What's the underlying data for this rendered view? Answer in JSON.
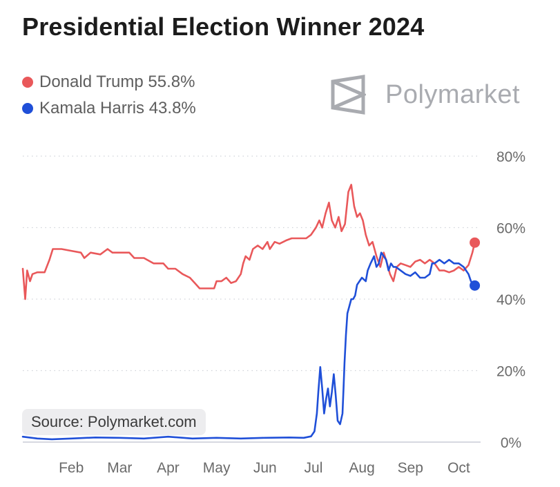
{
  "title": "Presidential Election Winner 2024",
  "legend": [
    {
      "label": "Donald Trump 55.8%",
      "color": "#e9585a"
    },
    {
      "label": "Kamala Harris 43.8%",
      "color": "#1f4fd8"
    }
  ],
  "brand": {
    "name": "Polymarket",
    "icon": "polymarket-logo-icon"
  },
  "source": "Source: Polymarket.com",
  "chart_data": {
    "type": "line",
    "xlabel": "",
    "ylabel": "",
    "xlim": [
      0,
      9.45
    ],
    "ylim": [
      0,
      80
    ],
    "x_ticks": [
      {
        "label": "Feb",
        "value": 1
      },
      {
        "label": "Mar",
        "value": 2
      },
      {
        "label": "Apr",
        "value": 3
      },
      {
        "label": "May",
        "value": 4
      },
      {
        "label": "Jun",
        "value": 5
      },
      {
        "label": "Jul",
        "value": 6
      },
      {
        "label": "Aug",
        "value": 7
      },
      {
        "label": "Sep",
        "value": 8
      },
      {
        "label": "Oct",
        "value": 9
      }
    ],
    "y_ticks": [
      {
        "label": "0%",
        "value": 0
      },
      {
        "label": "20%",
        "value": 20
      },
      {
        "label": "40%",
        "value": 40
      },
      {
        "label": "60%",
        "value": 60
      },
      {
        "label": "80%",
        "value": 80
      }
    ],
    "grid": "horizontal-dotted",
    "series": [
      {
        "name": "Donald Trump",
        "color": "#e9585a",
        "end_marker": true,
        "points": [
          [
            0.0,
            48.5
          ],
          [
            0.05,
            40
          ],
          [
            0.09,
            48
          ],
          [
            0.15,
            45
          ],
          [
            0.2,
            47
          ],
          [
            0.3,
            47.5
          ],
          [
            0.45,
            47.5
          ],
          [
            0.55,
            51
          ],
          [
            0.62,
            54
          ],
          [
            0.8,
            54
          ],
          [
            1.0,
            53.5
          ],
          [
            1.2,
            53
          ],
          [
            1.27,
            51.5
          ],
          [
            1.4,
            53
          ],
          [
            1.6,
            52.5
          ],
          [
            1.75,
            54
          ],
          [
            1.85,
            53
          ],
          [
            2.0,
            53
          ],
          [
            2.2,
            53
          ],
          [
            2.3,
            51.5
          ],
          [
            2.5,
            51.5
          ],
          [
            2.7,
            50
          ],
          [
            2.9,
            50
          ],
          [
            3.0,
            48.5
          ],
          [
            3.15,
            48.5
          ],
          [
            3.3,
            47
          ],
          [
            3.45,
            46
          ],
          [
            3.55,
            44.5
          ],
          [
            3.65,
            43
          ],
          [
            3.8,
            43
          ],
          [
            3.95,
            43
          ],
          [
            4.0,
            45
          ],
          [
            4.1,
            45
          ],
          [
            4.2,
            46
          ],
          [
            4.3,
            44.5
          ],
          [
            4.4,
            45
          ],
          [
            4.5,
            47
          ],
          [
            4.55,
            50
          ],
          [
            4.6,
            52
          ],
          [
            4.68,
            51
          ],
          [
            4.75,
            54
          ],
          [
            4.85,
            55
          ],
          [
            4.95,
            54
          ],
          [
            5.05,
            56
          ],
          [
            5.1,
            54
          ],
          [
            5.2,
            56
          ],
          [
            5.3,
            55.5
          ],
          [
            5.45,
            56.5
          ],
          [
            5.55,
            57
          ],
          [
            5.7,
            57
          ],
          [
            5.85,
            57
          ],
          [
            5.95,
            58
          ],
          [
            6.05,
            60
          ],
          [
            6.12,
            62
          ],
          [
            6.18,
            60
          ],
          [
            6.25,
            64
          ],
          [
            6.32,
            67
          ],
          [
            6.38,
            62
          ],
          [
            6.45,
            60
          ],
          [
            6.52,
            63
          ],
          [
            6.58,
            59
          ],
          [
            6.65,
            61
          ],
          [
            6.72,
            70
          ],
          [
            6.78,
            72
          ],
          [
            6.84,
            66
          ],
          [
            6.9,
            63
          ],
          [
            6.96,
            64
          ],
          [
            7.02,
            62
          ],
          [
            7.08,
            58
          ],
          [
            7.15,
            55
          ],
          [
            7.22,
            56
          ],
          [
            7.3,
            52
          ],
          [
            7.38,
            49
          ],
          [
            7.45,
            53
          ],
          [
            7.52,
            50
          ],
          [
            7.58,
            47
          ],
          [
            7.65,
            45
          ],
          [
            7.72,
            49
          ],
          [
            7.8,
            50
          ],
          [
            7.9,
            49.5
          ],
          [
            8.0,
            49
          ],
          [
            8.1,
            50.5
          ],
          [
            8.2,
            51
          ],
          [
            8.3,
            50
          ],
          [
            8.4,
            51
          ],
          [
            8.5,
            50
          ],
          [
            8.6,
            48
          ],
          [
            8.7,
            48
          ],
          [
            8.8,
            47.5
          ],
          [
            8.9,
            48
          ],
          [
            9.0,
            49
          ],
          [
            9.1,
            48
          ],
          [
            9.2,
            49.5
          ],
          [
            9.28,
            53
          ],
          [
            9.33,
            55.8
          ]
        ]
      },
      {
        "name": "Kamala Harris",
        "color": "#1f4fd8",
        "end_marker": true,
        "points": [
          [
            0.0,
            1.5
          ],
          [
            0.3,
            1
          ],
          [
            0.6,
            0.8
          ],
          [
            1.0,
            1
          ],
          [
            1.5,
            1.3
          ],
          [
            2.0,
            1.2
          ],
          [
            2.5,
            1
          ],
          [
            3.0,
            1.5
          ],
          [
            3.5,
            1
          ],
          [
            4.0,
            1.2
          ],
          [
            4.5,
            1
          ],
          [
            5.0,
            1.2
          ],
          [
            5.5,
            1.3
          ],
          [
            5.8,
            1.2
          ],
          [
            5.95,
            1.6
          ],
          [
            6.02,
            3
          ],
          [
            6.07,
            8
          ],
          [
            6.1,
            14
          ],
          [
            6.14,
            21
          ],
          [
            6.18,
            15
          ],
          [
            6.22,
            8
          ],
          [
            6.26,
            12
          ],
          [
            6.3,
            15
          ],
          [
            6.34,
            10
          ],
          [
            6.38,
            14
          ],
          [
            6.42,
            19
          ],
          [
            6.46,
            13
          ],
          [
            6.5,
            6
          ],
          [
            6.55,
            5
          ],
          [
            6.6,
            8
          ],
          [
            6.62,
            15
          ],
          [
            6.64,
            22
          ],
          [
            6.67,
            30
          ],
          [
            6.7,
            36
          ],
          [
            6.74,
            38
          ],
          [
            6.78,
            40
          ],
          [
            6.82,
            40
          ],
          [
            6.86,
            41
          ],
          [
            6.9,
            44
          ],
          [
            6.95,
            45
          ],
          [
            7.0,
            46
          ],
          [
            7.04,
            45.5
          ],
          [
            7.08,
            45
          ],
          [
            7.12,
            48
          ],
          [
            7.18,
            50
          ],
          [
            7.25,
            52
          ],
          [
            7.3,
            49
          ],
          [
            7.35,
            50
          ],
          [
            7.4,
            53
          ],
          [
            7.45,
            52
          ],
          [
            7.5,
            51
          ],
          [
            7.55,
            48
          ],
          [
            7.6,
            50
          ],
          [
            7.65,
            49
          ],
          [
            7.7,
            49
          ],
          [
            7.8,
            48
          ],
          [
            7.9,
            47
          ],
          [
            8.0,
            46.5
          ],
          [
            8.1,
            47.5
          ],
          [
            8.2,
            46
          ],
          [
            8.3,
            46
          ],
          [
            8.4,
            47
          ],
          [
            8.45,
            50
          ],
          [
            8.5,
            50
          ],
          [
            8.6,
            51
          ],
          [
            8.7,
            50
          ],
          [
            8.8,
            51
          ],
          [
            8.9,
            50
          ],
          [
            9.0,
            50
          ],
          [
            9.1,
            49
          ],
          [
            9.2,
            47
          ],
          [
            9.25,
            45
          ],
          [
            9.33,
            43.8
          ]
        ]
      }
    ]
  }
}
